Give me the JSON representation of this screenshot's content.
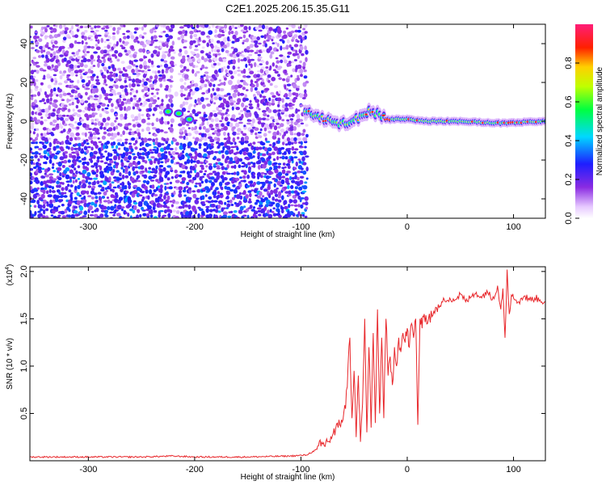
{
  "title": "C2E1.2025.206.15.35.G11",
  "colors": {
    "snr_line": "#e8262a",
    "frame": "#000000",
    "background": "#ffffff"
  },
  "chart_data": [
    {
      "type": "heatmap",
      "xlabel": "Height of straight line (km)",
      "ylabel": "Frequency (Hz)",
      "xlim": [
        -355,
        130
      ],
      "ylim": [
        -50,
        50
      ],
      "x_ticks": [
        -300,
        -200,
        -100,
        0,
        100
      ],
      "y_ticks": [
        -40,
        -20,
        0,
        20,
        40
      ],
      "colorbar": {
        "label": "Normalized spectral amplitude",
        "range": [
          0,
          1
        ],
        "ticks": [
          "0.0",
          "0.2",
          "0.4",
          "0.6",
          "0.8"
        ],
        "colormap": "rainbow (white-violet-blue-cyan-green-yellow-red-magenta)"
      },
      "features": {
        "noise_region_x": [
          -355,
          -95
        ],
        "signal_track_freq_hz": [
          [
            -95,
            5
          ],
          [
            -80,
            2
          ],
          [
            -65,
            -2
          ],
          [
            -50,
            0
          ],
          [
            -35,
            6
          ],
          [
            -20,
            1
          ],
          [
            0,
            1
          ],
          [
            20,
            0
          ],
          [
            50,
            0
          ],
          [
            90,
            -1
          ],
          [
            130,
            0
          ]
        ],
        "early_blob": [
          [
            -225,
            5
          ],
          [
            -215,
            4
          ],
          [
            -205,
            1
          ]
        ]
      }
    },
    {
      "type": "line",
      "xlabel": "Height of straight line (km)",
      "ylabel": "SNR (10 * v/v)",
      "y_multiplier": "(x10",
      "y_multiplier_exp": "4",
      "xlim": [
        -355,
        130
      ],
      "ylim": [
        0,
        2.05
      ],
      "x_ticks": [
        -300,
        -200,
        -100,
        0,
        100
      ],
      "y_ticks": [
        0.5,
        1.0,
        1.5,
        2.0
      ],
      "y_tick_labels": [
        "0.5",
        "1.0",
        "1.5",
        "2.0"
      ],
      "series": [
        {
          "x": [
            -355,
            -300,
            -250,
            -220,
            -200,
            -150,
            -110,
            -95,
            -85,
            -75,
            -65,
            -58,
            -54,
            -52,
            -50,
            -48,
            -46,
            -44,
            -42,
            -40,
            -38,
            -36,
            -34,
            -32,
            -30,
            -28,
            -26,
            -24,
            -22,
            -20,
            -18,
            -16,
            -14,
            -12,
            -10,
            -8,
            -6,
            -4,
            -2,
            0,
            2,
            4,
            6,
            8,
            10,
            12,
            14,
            16,
            20,
            25,
            30,
            35,
            40,
            45,
            50,
            55,
            60,
            65,
            70,
            75,
            80,
            85,
            88,
            90,
            92,
            94,
            96,
            98,
            100,
            105,
            110,
            115,
            120,
            125,
            130
          ],
          "y": [
            0.04,
            0.04,
            0.04,
            0.05,
            0.04,
            0.04,
            0.05,
            0.06,
            0.12,
            0.2,
            0.35,
            0.55,
            1.3,
            0.45,
            0.95,
            0.25,
            0.9,
            0.2,
            0.6,
            1.5,
            0.3,
            1.2,
            0.35,
            1.35,
            0.4,
            1.6,
            0.5,
            1.3,
            0.45,
            1.5,
            0.9,
            1.1,
            0.8,
            1.2,
            1.0,
            1.3,
            1.15,
            1.35,
            1.25,
            1.4,
            1.2,
            1.45,
            1.3,
            1.5,
            0.38,
            1.5,
            1.4,
            1.55,
            1.5,
            1.58,
            1.62,
            1.7,
            1.72,
            1.7,
            1.76,
            1.68,
            1.73,
            1.78,
            1.72,
            1.8,
            1.7,
            1.85,
            1.6,
            1.82,
            1.3,
            2.02,
            1.55,
            1.75,
            1.72,
            1.68,
            1.74,
            1.7,
            1.72,
            1.7,
            1.68
          ],
          "color": "#e8262a"
        }
      ]
    }
  ]
}
